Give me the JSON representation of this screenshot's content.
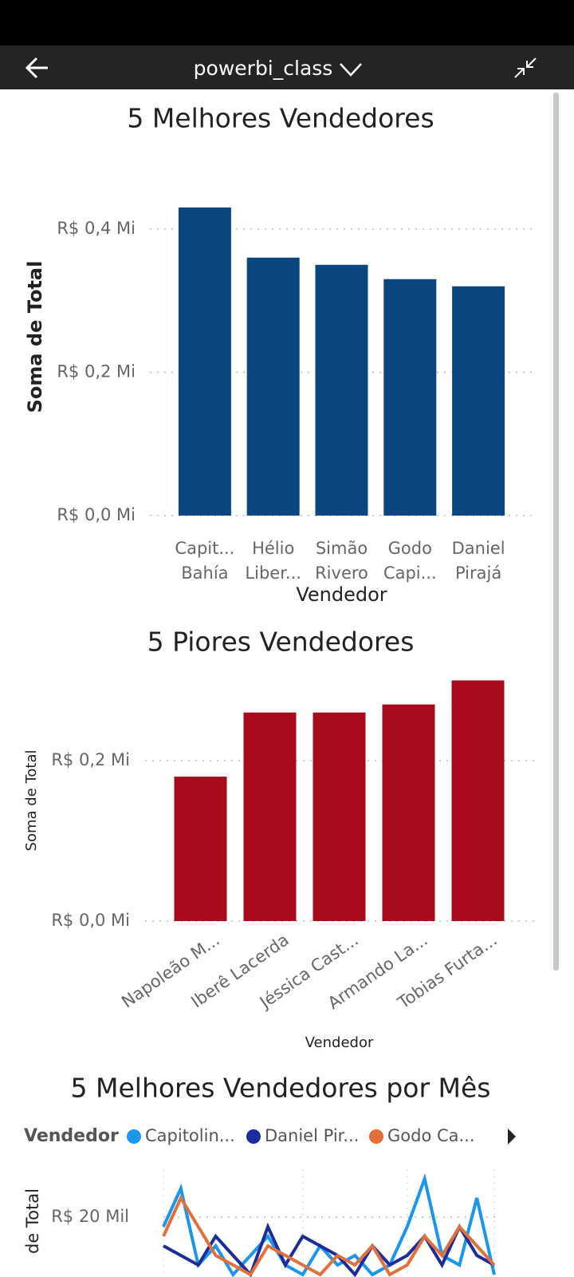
{
  "header": {
    "title": "powerbi_class"
  },
  "chart_data": [
    {
      "type": "bar",
      "title": "5 Melhores Vendedores",
      "y_label": "Soma de Total",
      "x_label": "Vendedor",
      "categories": [
        [
          "Capit...",
          "Bahía"
        ],
        [
          "Hélio",
          "Liber..."
        ],
        [
          "Simão",
          "Rivero"
        ],
        [
          "Godo",
          "Capi..."
        ],
        [
          "Daniel",
          "Pirajá"
        ]
      ],
      "values": [
        0.43,
        0.36,
        0.35,
        0.33,
        0.32
      ],
      "color": "#0a4780",
      "ylim": [
        0,
        0.45
      ],
      "yticks": [
        {
          "value": 0,
          "label": "R$ 0,0 Mi"
        },
        {
          "value": 0.2,
          "label": "R$ 0,2 Mi"
        },
        {
          "value": 0.4,
          "label": "R$ 0,4 Mi"
        }
      ],
      "grid": true
    },
    {
      "type": "bar",
      "title": "5 Piores Vendedores",
      "y_label": "Soma de Total",
      "x_label": "Vendedor",
      "categories": [
        "Napoleão M...",
        "Iberê Lacerda",
        "Jéssica Cast...",
        "Armando La...",
        "Tobias Furta..."
      ],
      "values": [
        0.18,
        0.26,
        0.26,
        0.27,
        0.3
      ],
      "color": "#a80c1c",
      "ylim": [
        0,
        0.3
      ],
      "yticks": [
        {
          "value": 0,
          "label": "R$ 0,0 Mi"
        },
        {
          "value": 0.2,
          "label": "R$ 0,2 Mi"
        }
      ],
      "grid": true
    },
    {
      "type": "line",
      "title": "5 Melhores Vendedores por Mês",
      "legend_title": "Vendedor",
      "y_label": "de Total",
      "categories": [
        null,
        null,
        null,
        null,
        null,
        null,
        null,
        null,
        null,
        null,
        null,
        null,
        null,
        null,
        null,
        null,
        null,
        null,
        null,
        null
      ],
      "series": [
        {
          "name": "Capitolin...",
          "color": "#1a96f0",
          "values": [
            19,
            23,
            15,
            17,
            14,
            16,
            18,
            15,
            14,
            17,
            15,
            16,
            14,
            15,
            19,
            24,
            16,
            15,
            22,
            14
          ]
        },
        {
          "name": "Daniel Pir...",
          "color": "#1c2c9c",
          "values": [
            17,
            16,
            15,
            18,
            16,
            14,
            19,
            15,
            18,
            17,
            16,
            14,
            17,
            15,
            16,
            18,
            15,
            19,
            16,
            15
          ]
        },
        {
          "name": "Godo Ca...",
          "color": "#e2703a",
          "values": [
            18,
            22,
            19,
            16,
            15,
            14,
            17,
            16,
            15,
            14,
            16,
            15,
            17,
            14,
            15,
            18,
            16,
            19,
            17,
            15
          ]
        }
      ],
      "ylim": [
        0,
        25
      ],
      "yticks": [
        {
          "value": 20,
          "label": "R$ 20 Mil"
        }
      ],
      "grid": true
    }
  ]
}
